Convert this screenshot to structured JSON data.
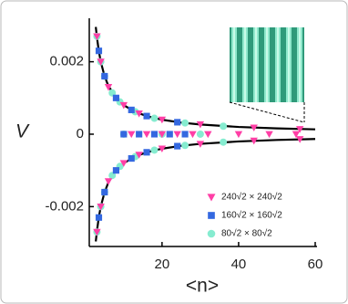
{
  "chart_data": {
    "type": "scatter",
    "x_label": "<n>",
    "y_label": "V",
    "xlim": [
      1,
      60
    ],
    "xticks": [
      20,
      40,
      60
    ],
    "ylim": [
      -0.0031,
      0.0032
    ],
    "yticks": [
      -0.002,
      0,
      0.002
    ],
    "series": [
      {
        "name": "240√2 × 240√2",
        "color": "#ff3fa6",
        "marker": "triangle",
        "x": [
          3,
          4,
          6,
          10,
          14,
          20,
          30,
          44,
          56,
          3,
          4,
          6,
          10,
          14,
          20,
          30,
          44,
          56,
          12,
          16,
          20,
          24,
          28,
          32,
          40,
          48,
          55
        ],
        "values": [
          0.0027,
          0.002,
          0.0013,
          0.0008,
          0.00057,
          0.0004,
          0.00027,
          0.00018,
          0.00014,
          -0.0027,
          -0.002,
          -0.0013,
          -0.0008,
          -0.00057,
          -0.0004,
          -0.00027,
          -0.00018,
          -0.00014,
          0,
          0,
          0,
          0,
          0,
          0,
          0,
          0,
          0
        ]
      },
      {
        "name": "160√2 × 160√2",
        "color": "#3468e0",
        "marker": "square",
        "x": [
          3.5,
          5,
          8,
          12,
          16,
          24,
          3.5,
          5,
          8,
          12,
          16,
          24,
          10,
          14,
          18,
          22,
          26
        ],
        "values": [
          0.0023,
          0.0016,
          0.001,
          0.00067,
          0.0005,
          0.00033,
          -0.0023,
          -0.0016,
          -0.001,
          -0.00067,
          -0.0005,
          -0.00033,
          0,
          0,
          0,
          0,
          0
        ]
      },
      {
        "name": "80√2 × 80√2",
        "color": "#86ecd0",
        "marker": "circle",
        "x": [
          3,
          4,
          5,
          7,
          9,
          13,
          18,
          26,
          36,
          3,
          4,
          5,
          7,
          9,
          13,
          18,
          26,
          36,
          10,
          20,
          30
        ],
        "values": [
          0.0027,
          0.002,
          0.0016,
          0.00114,
          0.00089,
          0.00062,
          0.00044,
          0.00031,
          0.00022,
          -0.0027,
          -0.002,
          -0.0016,
          -0.00114,
          -0.00089,
          -0.00062,
          -0.00044,
          -0.00031,
          -0.00022,
          0,
          0,
          0
        ]
      }
    ],
    "fit_curves": [
      {
        "color": "#000000",
        "x": [
          2.7,
          3,
          3.5,
          4,
          5,
          6,
          8,
          10,
          13,
          16,
          20,
          25,
          30,
          40,
          50,
          60
        ],
        "values": [
          0.00296,
          0.00267,
          0.00229,
          0.002,
          0.0016,
          0.00133,
          0.001,
          0.0008,
          0.000615,
          0.0005,
          0.0004,
          0.00032,
          0.000267,
          0.0002,
          0.00016,
          0.000133
        ]
      },
      {
        "color": "#000000",
        "x": [
          2.7,
          3,
          3.5,
          4,
          5,
          6,
          8,
          10,
          13,
          16,
          20,
          25,
          30,
          40,
          50,
          60
        ],
        "values": [
          -0.00296,
          -0.00267,
          -0.00229,
          -0.002,
          -0.0016,
          -0.00133,
          -0.001,
          -0.0008,
          -0.000615,
          -0.0005,
          -0.0004,
          -0.00032,
          -0.000267,
          -0.0002,
          -0.00016,
          -0.000133
        ]
      }
    ]
  }
}
